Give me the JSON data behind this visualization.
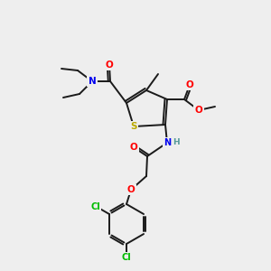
{
  "background_color": "#eeeeee",
  "bond_color": "#1a1a1a",
  "atom_colors": {
    "O": "#ff0000",
    "N": "#0000ee",
    "S": "#bbaa00",
    "Cl": "#00bb00",
    "H": "#559999",
    "C": "#1a1a1a"
  },
  "figsize": [
    3.0,
    3.0
  ],
  "dpi": 100,
  "lw": 1.4,
  "fs": 7.0
}
